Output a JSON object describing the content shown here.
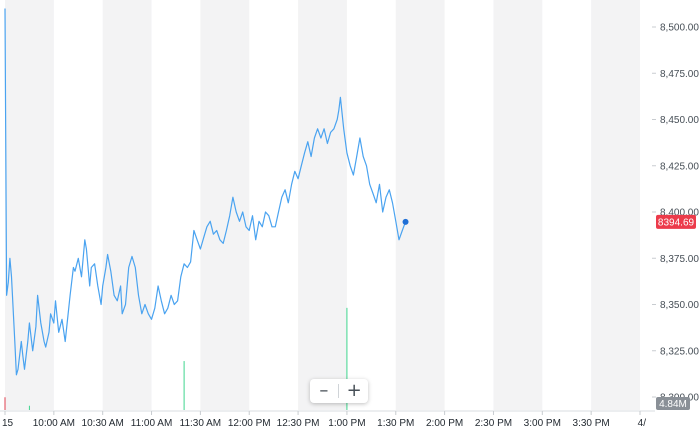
{
  "chart_data": {
    "type": "line",
    "ylim": [
      8295,
      8512
    ],
    "y_ticks": [
      8300,
      8325,
      8350,
      8375,
      8400,
      8425,
      8450,
      8475,
      8500
    ],
    "y_tick_labels": [
      "8,300.00",
      "8,325.00",
      "8,350.00",
      "8,375.00",
      "8,400.00",
      "8,425.00",
      "8,450.00",
      "8,475.00",
      "8,500.00"
    ],
    "x_ticks": [
      {
        "label": "15",
        "t": 0
      },
      {
        "label": "10:00 AM",
        "t": 30
      },
      {
        "label": "10:30 AM",
        "t": 60
      },
      {
        "label": "11:00 AM",
        "t": 90
      },
      {
        "label": "11:30 AM",
        "t": 120
      },
      {
        "label": "12:00 PM",
        "t": 150
      },
      {
        "label": "12:30 PM",
        "t": 180
      },
      {
        "label": "1:00 PM",
        "t": 210
      },
      {
        "label": "1:30 PM",
        "t": 240
      },
      {
        "label": "2:00 PM",
        "t": 270
      },
      {
        "label": "2:30 PM",
        "t": 300
      },
      {
        "label": "3:00 PM",
        "t": 330
      },
      {
        "label": "3:30 PM",
        "t": 360
      },
      {
        "label": "4/",
        "t": 390
      }
    ],
    "series": [
      {
        "points": [
          [
            0,
            8510
          ],
          [
            1,
            8355
          ],
          [
            2,
            8362
          ],
          [
            3,
            8375
          ],
          [
            4,
            8365
          ],
          [
            6,
            8330
          ],
          [
            7,
            8312
          ],
          [
            8,
            8315
          ],
          [
            10,
            8330
          ],
          [
            11,
            8322
          ],
          [
            12,
            8315
          ],
          [
            14,
            8330
          ],
          [
            15,
            8340
          ],
          [
            17,
            8325
          ],
          [
            19,
            8338
          ],
          [
            20,
            8355
          ],
          [
            22,
            8340
          ],
          [
            24,
            8330
          ],
          [
            25,
            8327
          ],
          [
            27,
            8335
          ],
          [
            28,
            8345
          ],
          [
            30,
            8340
          ],
          [
            31,
            8352
          ],
          [
            33,
            8335
          ],
          [
            35,
            8342
          ],
          [
            37,
            8330
          ],
          [
            40,
            8355
          ],
          [
            42,
            8370
          ],
          [
            43,
            8368
          ],
          [
            45,
            8375
          ],
          [
            47,
            8365
          ],
          [
            49,
            8385
          ],
          [
            50,
            8380
          ],
          [
            52,
            8360
          ],
          [
            53,
            8370
          ],
          [
            55,
            8372
          ],
          [
            57,
            8360
          ],
          [
            59,
            8350
          ],
          [
            60,
            8360
          ],
          [
            62,
            8370
          ],
          [
            63,
            8377
          ],
          [
            65,
            8368
          ],
          [
            67,
            8355
          ],
          [
            69,
            8352
          ],
          [
            71,
            8360
          ],
          [
            72,
            8345
          ],
          [
            74,
            8350
          ],
          [
            76,
            8370
          ],
          [
            78,
            8376
          ],
          [
            80,
            8370
          ],
          [
            82,
            8355
          ],
          [
            84,
            8345
          ],
          [
            86,
            8350
          ],
          [
            88,
            8345
          ],
          [
            90,
            8342
          ],
          [
            92,
            8348
          ],
          [
            94,
            8360
          ],
          [
            96,
            8352
          ],
          [
            98,
            8345
          ],
          [
            100,
            8348
          ],
          [
            102,
            8355
          ],
          [
            104,
            8350
          ],
          [
            106,
            8352
          ],
          [
            108,
            8365
          ],
          [
            110,
            8372
          ],
          [
            112,
            8370
          ],
          [
            114,
            8373
          ],
          [
            116,
            8390
          ],
          [
            118,
            8385
          ],
          [
            120,
            8380
          ],
          [
            122,
            8386
          ],
          [
            124,
            8392
          ],
          [
            126,
            8395
          ],
          [
            128,
            8388
          ],
          [
            130,
            8390
          ],
          [
            132,
            8385
          ],
          [
            134,
            8383
          ],
          [
            136,
            8390
          ],
          [
            138,
            8398
          ],
          [
            140,
            8408
          ],
          [
            142,
            8400
          ],
          [
            144,
            8395
          ],
          [
            146,
            8400
          ],
          [
            148,
            8392
          ],
          [
            150,
            8390
          ],
          [
            152,
            8398
          ],
          [
            154,
            8385
          ],
          [
            156,
            8395
          ],
          [
            158,
            8392
          ],
          [
            160,
            8400
          ],
          [
            162,
            8398
          ],
          [
            164,
            8392
          ],
          [
            166,
            8392
          ],
          [
            168,
            8400
          ],
          [
            170,
            8408
          ],
          [
            172,
            8412
          ],
          [
            174,
            8405
          ],
          [
            176,
            8415
          ],
          [
            178,
            8422
          ],
          [
            180,
            8418
          ],
          [
            182,
            8425
          ],
          [
            184,
            8432
          ],
          [
            186,
            8438
          ],
          [
            188,
            8430
          ],
          [
            190,
            8440
          ],
          [
            192,
            8445
          ],
          [
            194,
            8440
          ],
          [
            196,
            8445
          ],
          [
            198,
            8437
          ],
          [
            200,
            8443
          ],
          [
            202,
            8445
          ],
          [
            204,
            8450
          ],
          [
            205,
            8455
          ],
          [
            206,
            8462
          ],
          [
            208,
            8445
          ],
          [
            210,
            8432
          ],
          [
            212,
            8425
          ],
          [
            214,
            8420
          ],
          [
            216,
            8430
          ],
          [
            218,
            8440
          ],
          [
            220,
            8430
          ],
          [
            222,
            8425
          ],
          [
            224,
            8415
          ],
          [
            226,
            8410
          ],
          [
            228,
            8405
          ],
          [
            230,
            8415
          ],
          [
            232,
            8400
          ],
          [
            234,
            8408
          ],
          [
            236,
            8412
          ],
          [
            238,
            8405
          ],
          [
            240,
            8395
          ],
          [
            242,
            8385
          ],
          [
            244,
            8390
          ],
          [
            246,
            8394.69
          ]
        ]
      }
    ],
    "volume_bars": [
      {
        "t": 0,
        "v": 0.6
      },
      {
        "t": 15,
        "v": 0.2
      },
      {
        "t": 110,
        "v": 2.3
      },
      {
        "t": 210,
        "v": 4.8
      }
    ],
    "volume_max": 4.84,
    "volume_label": "4.84M",
    "last_value": 8394.69,
    "last_value_label": "8394.69",
    "colors": {
      "line": "#4aa3f0",
      "band": "#f3f3f4",
      "badge": "#ec3b4b",
      "volume_badge": "#8a9097",
      "volume_bar": "#3fd68e",
      "last_dot": "#1f6fd6"
    }
  },
  "controls": {
    "zoom_out_label": "–",
    "zoom_in_label": "+"
  }
}
